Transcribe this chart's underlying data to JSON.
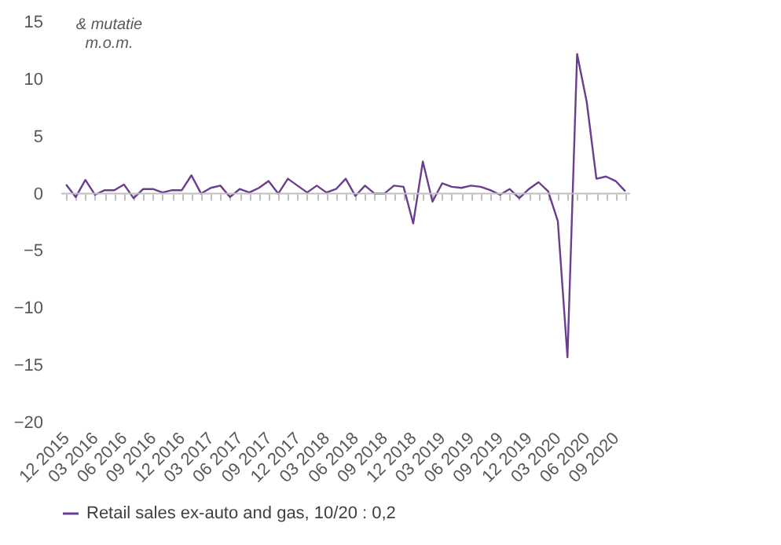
{
  "chart_data": {
    "type": "line",
    "ylabel": "& mutatie m.o.m.",
    "categories": [
      "12 2015",
      null,
      null,
      "03 2016",
      null,
      null,
      "06 2016",
      null,
      null,
      "09 2016",
      null,
      null,
      "12 2016",
      null,
      null,
      "03 2017",
      null,
      null,
      "06 2017",
      null,
      null,
      "09 2017",
      null,
      null,
      "12 2017",
      null,
      null,
      "03 2018",
      null,
      null,
      "06 2018",
      null,
      null,
      "09 2018",
      null,
      null,
      "12 2018",
      null,
      null,
      "03 2019",
      null,
      null,
      "06 2019",
      null,
      null,
      "09 2019",
      null,
      null,
      "12 2019",
      null,
      null,
      "03 2020",
      null,
      null,
      "06 2020",
      null,
      null,
      "09 2020",
      null
    ],
    "series": [
      {
        "name": "Retail sales ex-auto and gas, 10/20 : 0,2",
        "color": "#6a3d8f",
        "values": [
          0.8,
          -0.3,
          1.2,
          -0.1,
          0.3,
          0.3,
          0.8,
          -0.4,
          0.4,
          0.4,
          0.1,
          0.3,
          0.3,
          1.6,
          0.0,
          0.5,
          0.7,
          -0.3,
          0.4,
          0.1,
          0.5,
          1.1,
          0.0,
          1.3,
          0.7,
          0.1,
          0.7,
          0.1,
          0.4,
          1.3,
          -0.2,
          0.7,
          0.0,
          0.0,
          0.7,
          0.6,
          -2.6,
          2.8,
          -0.7,
          0.9,
          0.6,
          0.5,
          0.7,
          0.6,
          0.3,
          -0.1,
          0.4,
          -0.4,
          0.4,
          1.0,
          0.2,
          -2.4,
          -14.3,
          12.2,
          8.0,
          1.3,
          1.5,
          1.1,
          0.2
        ]
      }
    ],
    "ylim": [
      -20,
      15
    ],
    "yticks": [
      -20,
      -15,
      -10,
      -5,
      0,
      5,
      10,
      15
    ],
    "ref_lines": [
      {
        "axis": "y",
        "value": 0,
        "color": "#bfbfbf"
      }
    ],
    "grid": false,
    "legend": "bottom",
    "marker": "none",
    "line_style": "solid"
  }
}
